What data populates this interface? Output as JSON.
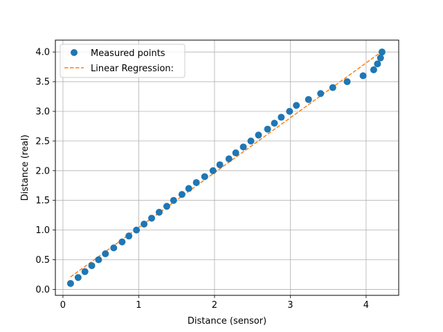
{
  "chart_data": {
    "type": "scatter",
    "title": "",
    "xlabel": "Distance (sensor)",
    "ylabel": "Distance (real)",
    "xlim": [
      -0.1,
      4.43
    ],
    "ylim": [
      -0.1,
      4.2
    ],
    "x_ticks": [
      {
        "value": 0,
        "label": "0"
      },
      {
        "value": 1,
        "label": "1"
      },
      {
        "value": 2,
        "label": "2"
      },
      {
        "value": 3,
        "label": "3"
      },
      {
        "value": 4,
        "label": "4"
      }
    ],
    "y_ticks": [
      {
        "value": 0.0,
        "label": "0.0"
      },
      {
        "value": 0.5,
        "label": "0.5"
      },
      {
        "value": 1.0,
        "label": "1.0"
      },
      {
        "value": 1.5,
        "label": "1.5"
      },
      {
        "value": 2.0,
        "label": "2.0"
      },
      {
        "value": 2.5,
        "label": "2.5"
      },
      {
        "value": 3.0,
        "label": "3.0"
      },
      {
        "value": 3.5,
        "label": "3.5"
      },
      {
        "value": 4.0,
        "label": "4.0"
      }
    ],
    "grid": true,
    "legend_position": "top-left",
    "series": [
      {
        "name": "Measured points",
        "kind": "scatter",
        "color": "#1f77b4",
        "points": [
          {
            "x": 0.1,
            "y": 0.1
          },
          {
            "x": 0.2,
            "y": 0.2
          },
          {
            "x": 0.29,
            "y": 0.3
          },
          {
            "x": 0.38,
            "y": 0.4
          },
          {
            "x": 0.47,
            "y": 0.5
          },
          {
            "x": 0.56,
            "y": 0.6
          },
          {
            "x": 0.67,
            "y": 0.7
          },
          {
            "x": 0.78,
            "y": 0.8
          },
          {
            "x": 0.87,
            "y": 0.9
          },
          {
            "x": 0.97,
            "y": 1.0
          },
          {
            "x": 1.07,
            "y": 1.1
          },
          {
            "x": 1.17,
            "y": 1.2
          },
          {
            "x": 1.27,
            "y": 1.3
          },
          {
            "x": 1.37,
            "y": 1.4
          },
          {
            "x": 1.46,
            "y": 1.5
          },
          {
            "x": 1.57,
            "y": 1.6
          },
          {
            "x": 1.66,
            "y": 1.7
          },
          {
            "x": 1.76,
            "y": 1.8
          },
          {
            "x": 1.87,
            "y": 1.9
          },
          {
            "x": 1.98,
            "y": 2.0
          },
          {
            "x": 2.07,
            "y": 2.1
          },
          {
            "x": 2.19,
            "y": 2.2
          },
          {
            "x": 2.28,
            "y": 2.3
          },
          {
            "x": 2.38,
            "y": 2.4
          },
          {
            "x": 2.48,
            "y": 2.5
          },
          {
            "x": 2.58,
            "y": 2.6
          },
          {
            "x": 2.7,
            "y": 2.7
          },
          {
            "x": 2.79,
            "y": 2.8
          },
          {
            "x": 2.88,
            "y": 2.9
          },
          {
            "x": 2.99,
            "y": 3.0
          },
          {
            "x": 3.08,
            "y": 3.1
          },
          {
            "x": 3.24,
            "y": 3.2
          },
          {
            "x": 3.4,
            "y": 3.3
          },
          {
            "x": 3.56,
            "y": 3.4
          },
          {
            "x": 3.75,
            "y": 3.5
          },
          {
            "x": 3.96,
            "y": 3.6
          },
          {
            "x": 4.1,
            "y": 3.7
          },
          {
            "x": 4.15,
            "y": 3.8
          },
          {
            "x": 4.19,
            "y": 3.9
          },
          {
            "x": 4.21,
            "y": 4.0
          }
        ]
      },
      {
        "name": "Linear Regression:",
        "kind": "line",
        "style": "dashed",
        "color": "#ff7f0e",
        "points": [
          {
            "x": 0.1,
            "y": 0.21
          },
          {
            "x": 4.21,
            "y": 4.01
          }
        ]
      }
    ]
  }
}
